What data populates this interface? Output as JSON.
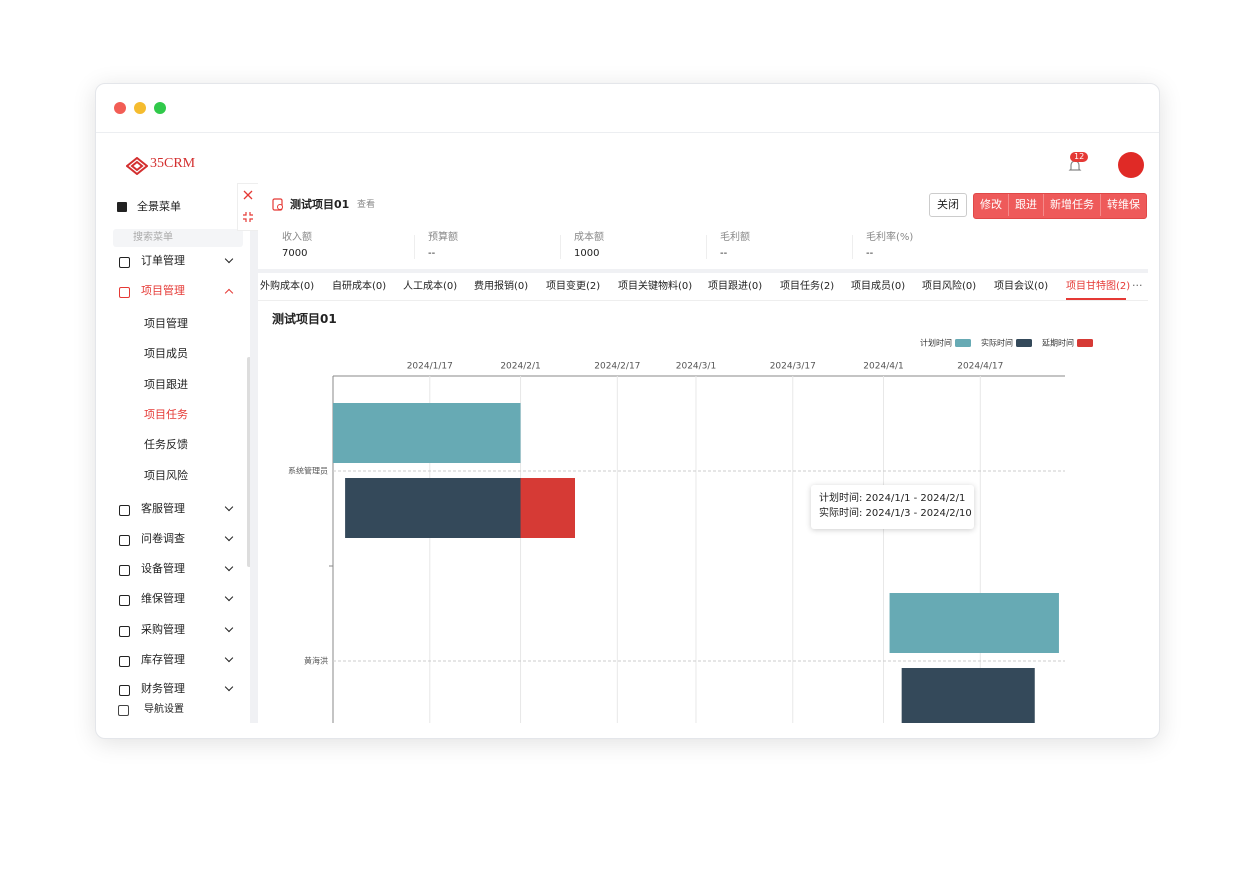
{
  "brand": {
    "logo": "35CRM"
  },
  "header": {
    "notification_count": "12"
  },
  "sidebar": {
    "all_menu": "全景菜单",
    "search_placeholder": "搜索菜单",
    "items": [
      {
        "label": "订单管理"
      },
      {
        "label": "项目管理",
        "children": [
          "项目管理",
          "项目成员",
          "项目跟进",
          "项目任务",
          "任务反馈",
          "项目风险"
        ]
      },
      {
        "label": "客服管理"
      },
      {
        "label": "问卷调查"
      },
      {
        "label": "设备管理"
      },
      {
        "label": "维保管理"
      },
      {
        "label": "采购管理"
      },
      {
        "label": "库存管理"
      },
      {
        "label": "财务管理"
      }
    ],
    "active_item": 1,
    "active_child": 3,
    "footer": "导航设置"
  },
  "project": {
    "title": "测试项目01",
    "view": "查看",
    "close_button": "关闭",
    "buttons": [
      "修改",
      "跟进",
      "新增任务",
      "转维保"
    ],
    "stats": [
      {
        "label": "收入额",
        "value": "7000"
      },
      {
        "label": "预算额",
        "value": "--"
      },
      {
        "label": "成本额",
        "value": "1000"
      },
      {
        "label": "毛利额",
        "value": "--"
      },
      {
        "label": "毛利率(%)",
        "value": "--"
      }
    ],
    "tabs": [
      "外购成本(0)",
      "自研成本(0)",
      "人工成本(0)",
      "费用报销(0)",
      "项目变更(2)",
      "项目关键物料(0)",
      "项目跟进(0)",
      "项目任务(2)",
      "项目成员(0)",
      "项目风险(0)",
      "项目会议(0)",
      "项目甘特图(2)"
    ],
    "active_tab": 11
  },
  "chart_data": {
    "type": "gantt",
    "title": "测试项目01",
    "categories": [
      "系统管理员",
      "黄海洪"
    ],
    "xlim": [
      "2024/1/1",
      "2024/5/1"
    ],
    "xticks": [
      "2024/1/17",
      "2024/2/1",
      "2024/2/17",
      "2024/3/1",
      "2024/3/17",
      "2024/4/1",
      "2024/4/17"
    ],
    "grid": true,
    "series": [
      {
        "name": "计划时间",
        "color": "#67aab4",
        "values": [
          [
            "2024/1/1",
            "2024/2/1"
          ],
          [
            "2024/4/2",
            "2024/4/30"
          ]
        ]
      },
      {
        "name": "实际时间",
        "color": "#34495a",
        "values": [
          [
            "2024/1/3",
            "2024/2/10"
          ],
          [
            "2024/4/4",
            "2024/4/26"
          ]
        ]
      },
      {
        "name": "延期时间",
        "color": "#d63a35",
        "values": [
          [
            "2024/2/1",
            "2024/2/10"
          ],
          null
        ]
      }
    ],
    "tooltip": [
      "计划时间: 2024/1/1 - 2024/2/1",
      "实际时间: 2024/1/3 - 2024/2/10"
    ]
  }
}
